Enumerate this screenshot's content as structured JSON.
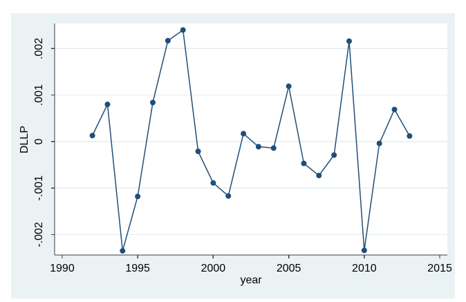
{
  "chart_data": {
    "type": "line",
    "title": "",
    "xlabel": "year",
    "ylabel": "DLLP",
    "x": [
      1992,
      1993,
      1994,
      1995,
      1996,
      1997,
      1998,
      1999,
      2000,
      2001,
      2002,
      2003,
      2004,
      2005,
      2006,
      2007,
      2008,
      2009,
      2010,
      2011,
      2012,
      2013
    ],
    "values": [
      0.00013,
      0.0008,
      -0.00235,
      -0.00118,
      0.00084,
      0.00217,
      0.0024,
      -0.00021,
      -0.00089,
      -0.00117,
      0.00017,
      -0.00011,
      -0.00014,
      0.00119,
      -0.00047,
      -0.00073,
      -0.00029,
      0.00216,
      -0.00234,
      -4e-05,
      0.00069,
      0.00012
    ],
    "xticks": [
      1990,
      1995,
      2000,
      2005,
      2010,
      2015
    ],
    "xtick_labels": [
      "1990",
      "1995",
      "2000",
      "2005",
      "2010",
      "2015"
    ],
    "yticks": [
      -0.002,
      -0.001,
      0,
      0.001,
      0.002
    ],
    "ytick_labels": [
      "-.002",
      "-.001",
      "0",
      ".001",
      ".002"
    ],
    "xlim": [
      1989.5,
      2015.5
    ],
    "ylim": [
      -0.00244,
      0.00254
    ],
    "grid": "horizontal",
    "legend": "none",
    "marker": "circle"
  },
  "colors": {
    "figure_bg": "#eaf2f3",
    "plot_bg": "#ffffff",
    "grid": "#e2edef",
    "axis": "#3b3b3b",
    "line": "#1f4e79",
    "marker": "#1f4e79",
    "text": "#000000"
  }
}
